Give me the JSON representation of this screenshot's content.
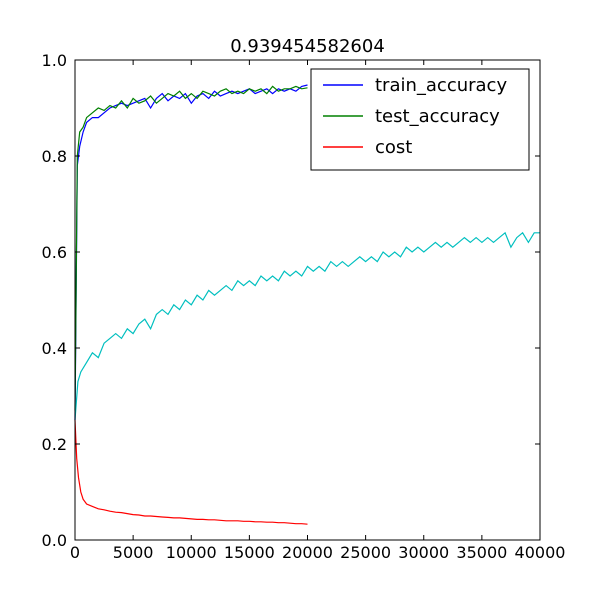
{
  "chart_data": {
    "type": "line",
    "title": "0.939454582604",
    "xlabel": "",
    "ylabel": "",
    "xlim": [
      0,
      40000
    ],
    "ylim": [
      0.0,
      1.0
    ],
    "xticks": [
      0,
      5000,
      10000,
      15000,
      20000,
      25000,
      30000,
      35000,
      40000
    ],
    "xtick_labels": [
      "0",
      "5000",
      "10000",
      "15000",
      "20000",
      "25000",
      "30000",
      "35000",
      "40000"
    ],
    "yticks": [
      0.0,
      0.2,
      0.4,
      0.6,
      0.8,
      1.0
    ],
    "ytick_labels": [
      "0.0",
      "0.2",
      "0.4",
      "0.6",
      "0.8",
      "1.0"
    ],
    "grid": false,
    "legend_position": "top-right",
    "series": [
      {
        "name": "train_accuracy",
        "color": "#0000ff",
        "x": [
          0,
          200,
          400,
          700,
          1000,
          1500,
          2000,
          2500,
          3000,
          3500,
          4000,
          4500,
          5000,
          5500,
          6000,
          6500,
          7000,
          7500,
          8000,
          8500,
          9000,
          9500,
          10000,
          10500,
          11000,
          11500,
          12000,
          12500,
          13000,
          13500,
          14000,
          14500,
          15000,
          15500,
          16000,
          16500,
          17000,
          17500,
          18000,
          18500,
          19000,
          19500,
          20000
        ],
        "y": [
          0.25,
          0.78,
          0.82,
          0.85,
          0.87,
          0.88,
          0.88,
          0.89,
          0.9,
          0.905,
          0.91,
          0.905,
          0.91,
          0.915,
          0.92,
          0.9,
          0.92,
          0.93,
          0.915,
          0.925,
          0.92,
          0.93,
          0.91,
          0.925,
          0.93,
          0.92,
          0.935,
          0.925,
          0.93,
          0.935,
          0.93,
          0.935,
          0.94,
          0.93,
          0.935,
          0.94,
          0.93,
          0.94,
          0.935,
          0.94,
          0.935,
          0.945,
          0.948
        ]
      },
      {
        "name": "test_accuracy",
        "color": "#008000",
        "x": [
          0,
          200,
          400,
          700,
          1000,
          1500,
          2000,
          2500,
          3000,
          3500,
          4000,
          4500,
          5000,
          5500,
          6000,
          6500,
          7000,
          7500,
          8000,
          8500,
          9000,
          9500,
          10000,
          10500,
          11000,
          11500,
          12000,
          12500,
          13000,
          13500,
          14000,
          14500,
          15000,
          15500,
          16000,
          16500,
          17000,
          17500,
          18000,
          18500,
          19000,
          19500,
          20000
        ],
        "y": [
          0.27,
          0.8,
          0.85,
          0.86,
          0.88,
          0.89,
          0.9,
          0.895,
          0.905,
          0.9,
          0.915,
          0.9,
          0.92,
          0.91,
          0.915,
          0.925,
          0.91,
          0.92,
          0.93,
          0.925,
          0.935,
          0.92,
          0.93,
          0.92,
          0.935,
          0.93,
          0.925,
          0.935,
          0.94,
          0.93,
          0.935,
          0.93,
          0.94,
          0.935,
          0.94,
          0.93,
          0.945,
          0.935,
          0.94,
          0.94,
          0.945,
          0.94,
          0.942
        ]
      },
      {
        "name": "cost",
        "color": "#ff0000",
        "x": [
          0,
          150,
          300,
          500,
          700,
          1000,
          1500,
          2000,
          2500,
          3000,
          3500,
          4000,
          4500,
          5000,
          5500,
          6000,
          6500,
          7000,
          7500,
          8000,
          8500,
          9000,
          9500,
          10000,
          10500,
          11000,
          11500,
          12000,
          12500,
          13000,
          13500,
          14000,
          14500,
          15000,
          15500,
          16000,
          16500,
          17000,
          17500,
          18000,
          18500,
          19000,
          19500,
          20000
        ],
        "y": [
          0.25,
          0.17,
          0.13,
          0.1,
          0.085,
          0.075,
          0.07,
          0.065,
          0.063,
          0.06,
          0.058,
          0.057,
          0.055,
          0.053,
          0.052,
          0.05,
          0.05,
          0.049,
          0.048,
          0.047,
          0.046,
          0.046,
          0.045,
          0.044,
          0.043,
          0.043,
          0.042,
          0.042,
          0.041,
          0.04,
          0.04,
          0.04,
          0.039,
          0.039,
          0.038,
          0.038,
          0.037,
          0.037,
          0.036,
          0.036,
          0.035,
          0.034,
          0.034,
          0.033
        ]
      },
      {
        "color": "#00bfbf",
        "x": [
          0,
          250,
          500,
          1000,
          1500,
          2000,
          2500,
          3000,
          3500,
          4000,
          4500,
          5000,
          5500,
          6000,
          6500,
          7000,
          7500,
          8000,
          8500,
          9000,
          9500,
          10000,
          10500,
          11000,
          11500,
          12000,
          12500,
          13000,
          13500,
          14000,
          14500,
          15000,
          15500,
          16000,
          16500,
          17000,
          17500,
          18000,
          18500,
          19000,
          19500,
          20000,
          20500,
          21000,
          21500,
          22000,
          22500,
          23000,
          23500,
          24000,
          24500,
          25000,
          25500,
          26000,
          26500,
          27000,
          27500,
          28000,
          28500,
          29000,
          29500,
          30000,
          30500,
          31000,
          31500,
          32000,
          32500,
          33000,
          33500,
          34000,
          34500,
          35000,
          35500,
          36000,
          36500,
          37000,
          37500,
          38000,
          38500,
          39000,
          39500,
          40000
        ],
        "y": [
          0.25,
          0.33,
          0.35,
          0.37,
          0.39,
          0.38,
          0.41,
          0.42,
          0.43,
          0.42,
          0.44,
          0.43,
          0.45,
          0.46,
          0.44,
          0.47,
          0.48,
          0.47,
          0.49,
          0.48,
          0.5,
          0.49,
          0.51,
          0.5,
          0.52,
          0.51,
          0.52,
          0.53,
          0.52,
          0.54,
          0.53,
          0.54,
          0.53,
          0.55,
          0.54,
          0.55,
          0.54,
          0.56,
          0.55,
          0.56,
          0.55,
          0.57,
          0.56,
          0.57,
          0.56,
          0.58,
          0.57,
          0.58,
          0.57,
          0.58,
          0.59,
          0.58,
          0.59,
          0.58,
          0.6,
          0.59,
          0.6,
          0.59,
          0.61,
          0.6,
          0.61,
          0.6,
          0.61,
          0.62,
          0.61,
          0.62,
          0.61,
          0.62,
          0.63,
          0.62,
          0.63,
          0.62,
          0.63,
          0.62,
          0.63,
          0.64,
          0.61,
          0.63,
          0.64,
          0.62,
          0.64,
          0.64
        ]
      }
    ],
    "legend": [
      "train_accuracy",
      "test_accuracy",
      "cost"
    ]
  }
}
